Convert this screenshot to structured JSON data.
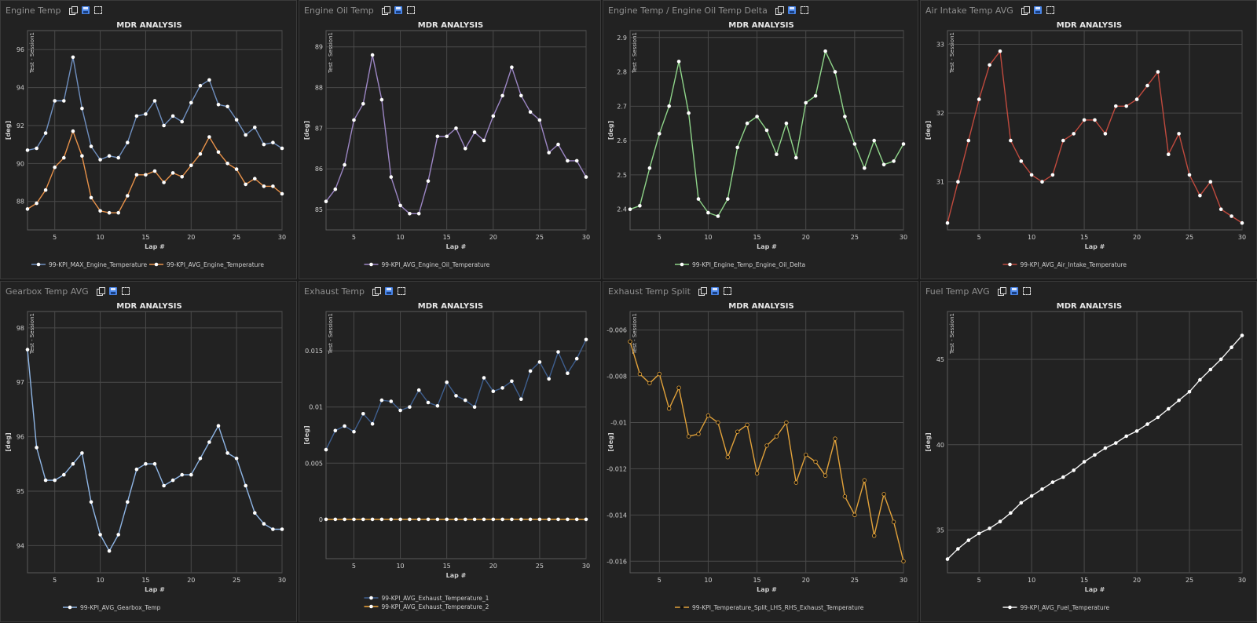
{
  "dashboard": {
    "panels": [
      {
        "title": "Engine Temp"
      },
      {
        "title": "Engine Oil Temp"
      },
      {
        "title": "Engine Temp / Engine Oil Temp Delta"
      },
      {
        "title": "Air Intake Temp AVG"
      },
      {
        "title": "Gearbox Temp AVG"
      },
      {
        "title": "Exhaust Temp"
      },
      {
        "title": "Exhaust Temp Split"
      },
      {
        "title": "Fuel Temp AVG"
      }
    ]
  },
  "icons": {
    "copy": "copy-icon",
    "save": "save-icon",
    "maximize": "maximize-icon"
  },
  "colors": {
    "panel_bg": "#222222",
    "grid": "#4a4a4a",
    "text": "#cfcfcf"
  },
  "chart_data": [
    {
      "type": "line",
      "title": "MDR ANALYSIS",
      "xlabel": "Lap #",
      "ylabel": "[deg]",
      "annotation": "Test - Session1",
      "xlim": [
        2,
        30
      ],
      "ylim": [
        86.5,
        97
      ],
      "xticks": [
        5,
        10,
        15,
        20,
        25,
        30
      ],
      "yticks": [
        88,
        90,
        92,
        94,
        96
      ],
      "ytick_labels": [
        "88",
        "90",
        "92",
        "94",
        "96"
      ],
      "x": [
        2,
        3,
        4,
        5,
        6,
        7,
        8,
        9,
        10,
        11,
        12,
        13,
        14,
        15,
        16,
        17,
        18,
        19,
        20,
        21,
        22,
        23,
        24,
        25,
        26,
        27,
        28,
        29,
        30
      ],
      "series": [
        {
          "name": "99-KPI_MAX_Engine_Temperature",
          "color": "#6f8fbf",
          "values": [
            90.7,
            90.8,
            91.6,
            93.3,
            93.3,
            95.6,
            92.9,
            90.9,
            90.2,
            90.4,
            90.3,
            91.1,
            92.5,
            92.6,
            93.3,
            92.0,
            92.5,
            92.2,
            93.2,
            94.1,
            94.4,
            93.1,
            93.0,
            92.3,
            91.5,
            91.9,
            91.0,
            91.1,
            90.8
          ]
        },
        {
          "name": "99-KPI_AVG_Engine_Temperature",
          "color": "#e8924a",
          "values": [
            87.6,
            87.9,
            88.6,
            89.8,
            90.3,
            91.7,
            90.4,
            88.2,
            87.5,
            87.4,
            87.4,
            88.3,
            89.4,
            89.4,
            89.6,
            89.0,
            89.5,
            89.3,
            89.9,
            90.5,
            91.4,
            90.6,
            90.0,
            89.7,
            88.9,
            89.2,
            88.8,
            88.8,
            88.4
          ]
        }
      ]
    },
    {
      "type": "line",
      "title": "MDR ANALYSIS",
      "xlabel": "Lap #",
      "ylabel": "[deg]",
      "annotation": "Test - Session1",
      "xlim": [
        2,
        30
      ],
      "ylim": [
        84.5,
        89.4
      ],
      "xticks": [
        5,
        10,
        15,
        20,
        25,
        30
      ],
      "yticks": [
        85,
        86,
        87,
        88,
        89
      ],
      "ytick_labels": [
        "85",
        "86",
        "87",
        "88",
        "89"
      ],
      "x": [
        2,
        3,
        4,
        5,
        6,
        7,
        8,
        9,
        10,
        11,
        12,
        13,
        14,
        15,
        16,
        17,
        18,
        19,
        20,
        21,
        22,
        23,
        24,
        25,
        26,
        27,
        28,
        29,
        30
      ],
      "series": [
        {
          "name": "99-KPI_AVG_Engine_Oil_Temperature",
          "color": "#9c86c4",
          "values": [
            85.2,
            85.5,
            86.1,
            87.2,
            87.6,
            88.8,
            87.7,
            85.8,
            85.1,
            84.9,
            84.9,
            85.7,
            86.8,
            86.8,
            87.0,
            86.5,
            86.9,
            86.7,
            87.3,
            87.8,
            88.5,
            87.8,
            87.4,
            87.2,
            86.4,
            86.6,
            86.2,
            86.2,
            85.8
          ]
        }
      ]
    },
    {
      "type": "line",
      "title": "MDR ANALYSIS",
      "xlabel": "Lap #",
      "ylabel": "[deg]",
      "annotation": "Test - Session1",
      "xlim": [
        2,
        30
      ],
      "ylim": [
        2.34,
        2.92
      ],
      "xticks": [
        5,
        10,
        15,
        20,
        25,
        30
      ],
      "yticks": [
        2.4,
        2.5,
        2.6,
        2.7,
        2.8,
        2.9
      ],
      "ytick_labels": [
        "2.4",
        "2.5",
        "2.6",
        "2.7",
        "2.8",
        "2.9"
      ],
      "x": [
        2,
        3,
        4,
        5,
        6,
        7,
        8,
        9,
        10,
        11,
        12,
        13,
        14,
        15,
        16,
        17,
        18,
        19,
        20,
        21,
        22,
        23,
        24,
        25,
        26,
        27,
        28,
        29,
        30
      ],
      "series": [
        {
          "name": "99-KPI_Engine_Temp_Engine_Oil_Delta",
          "color": "#8fd58a",
          "values": [
            2.4,
            2.41,
            2.52,
            2.62,
            2.7,
            2.83,
            2.68,
            2.43,
            2.39,
            2.38,
            2.43,
            2.58,
            2.65,
            2.67,
            2.63,
            2.56,
            2.65,
            2.55,
            2.71,
            2.73,
            2.86,
            2.8,
            2.67,
            2.59,
            2.52,
            2.6,
            2.53,
            2.54,
            2.59
          ]
        }
      ]
    },
    {
      "type": "line",
      "title": "MDR ANALYSIS",
      "xlabel": "Lap #",
      "ylabel": "[deg]",
      "annotation": "Test - Session1",
      "xlim": [
        2,
        30
      ],
      "ylim": [
        30.3,
        33.2
      ],
      "xticks": [
        5,
        10,
        15,
        20,
        25,
        30
      ],
      "yticks": [
        31,
        32,
        33
      ],
      "ytick_labels": [
        "31",
        "32",
        "33"
      ],
      "x": [
        2,
        3,
        4,
        5,
        6,
        7,
        8,
        9,
        10,
        11,
        12,
        13,
        14,
        15,
        16,
        17,
        18,
        19,
        20,
        21,
        22,
        23,
        24,
        25,
        26,
        27,
        28,
        29,
        30
      ],
      "series": [
        {
          "name": "99-KPI_AVG_Air_Intake_Temperature",
          "color": "#c04a3e",
          "values": [
            30.4,
            31.0,
            31.6,
            32.2,
            32.7,
            32.9,
            31.6,
            31.3,
            31.1,
            31.0,
            31.1,
            31.6,
            31.7,
            31.9,
            31.9,
            31.7,
            32.1,
            32.1,
            32.2,
            32.4,
            32.6,
            31.4,
            31.7,
            31.1,
            30.8,
            31.0,
            30.6,
            30.5,
            30.4
          ]
        }
      ]
    },
    {
      "type": "line",
      "title": "MDR ANALYSIS",
      "xlabel": "Lap #",
      "ylabel": "[deg]",
      "annotation": "Test - Session1",
      "xlim": [
        2,
        30
      ],
      "ylim": [
        93.5,
        98.3
      ],
      "xticks": [
        5,
        10,
        15,
        20,
        25,
        30
      ],
      "yticks": [
        94,
        95,
        96,
        97,
        98
      ],
      "ytick_labels": [
        "94",
        "95",
        "96",
        "97",
        "98"
      ],
      "x": [
        2,
        3,
        4,
        5,
        6,
        7,
        8,
        9,
        10,
        11,
        12,
        13,
        14,
        15,
        16,
        17,
        18,
        19,
        20,
        21,
        22,
        23,
        24,
        25,
        26,
        27,
        28,
        29,
        30
      ],
      "series": [
        {
          "name": "99-KPI_AVG_Gearbox_Temp",
          "color": "#8fb6e6",
          "values": [
            97.6,
            95.8,
            95.2,
            95.2,
            95.3,
            95.5,
            95.7,
            94.8,
            94.2,
            93.9,
            94.2,
            94.8,
            95.4,
            95.5,
            95.5,
            95.1,
            95.2,
            95.3,
            95.3,
            95.6,
            95.9,
            96.2,
            95.7,
            95.6,
            95.1,
            94.6,
            94.4,
            94.3,
            94.3
          ]
        }
      ]
    },
    {
      "type": "line",
      "title": "MDR ANALYSIS",
      "xlabel": "Lap #",
      "ylabel": "[deg]",
      "annotation": "Test - Session1",
      "xlim": [
        2,
        30
      ],
      "ylim": [
        -0.0035,
        0.0185
      ],
      "xticks": [
        5,
        10,
        15,
        20,
        25,
        30
      ],
      "yticks": [
        0,
        0.005,
        0.01,
        0.015
      ],
      "ytick_labels": [
        "0",
        "0.005",
        "0.01",
        "0.015"
      ],
      "x": [
        2,
        3,
        4,
        5,
        6,
        7,
        8,
        9,
        10,
        11,
        12,
        13,
        14,
        15,
        16,
        17,
        18,
        19,
        20,
        21,
        22,
        23,
        24,
        25,
        26,
        27,
        28,
        29,
        30
      ],
      "series": [
        {
          "name": "99-KPI_AVG_Exhaust_Temperature_1",
          "color": "#3f5f8f",
          "values": [
            0.0062,
            0.0079,
            0.0083,
            0.0078,
            0.0094,
            0.0085,
            0.0106,
            0.0105,
            0.0097,
            0.01,
            0.0115,
            0.0104,
            0.0101,
            0.0122,
            0.011,
            0.0106,
            0.01,
            0.0126,
            0.0114,
            0.0117,
            0.0123,
            0.0107,
            0.0132,
            0.014,
            0.0125,
            0.0149,
            0.013,
            0.0143,
            0.016
          ]
        },
        {
          "name": "99-KPI_AVG_Exhaust_Temperature_2",
          "color": "#f0a63a",
          "values": [
            0,
            0,
            0,
            0,
            0,
            0,
            0,
            0,
            0,
            0,
            0,
            0,
            0,
            0,
            0,
            0,
            0,
            0,
            0,
            0,
            0,
            0,
            0,
            0,
            0,
            0,
            0,
            0,
            0
          ]
        }
      ]
    },
    {
      "type": "line",
      "title": "MDR ANALYSIS",
      "xlabel": "Lap #",
      "ylabel": "[deg]",
      "annotation": "Test - Session1",
      "xlim": [
        2,
        30
      ],
      "ylim": [
        -0.0165,
        -0.0052
      ],
      "xticks": [
        5,
        10,
        15,
        20,
        25,
        30
      ],
      "yticks": [
        -0.016,
        -0.014,
        -0.012,
        -0.01,
        -0.008,
        -0.006
      ],
      "ytick_labels": [
        "-0.016",
        "-0.014",
        "-0.012",
        "-0.01",
        "-0.008",
        "-0.006"
      ],
      "x": [
        2,
        3,
        4,
        5,
        6,
        7,
        8,
        9,
        10,
        11,
        12,
        13,
        14,
        15,
        16,
        17,
        18,
        19,
        20,
        21,
        22,
        23,
        24,
        25,
        26,
        27,
        28,
        29,
        30
      ],
      "series": [
        {
          "name": "99-KPI_Temperature_Split_LHS_RHS_Exhaust_Temperature",
          "color": "#e2a23a",
          "marker": "#111111",
          "values": [
            -0.0065,
            -0.0079,
            -0.0083,
            -0.0079,
            -0.0094,
            -0.0085,
            -0.0106,
            -0.0105,
            -0.0097,
            -0.01,
            -0.0115,
            -0.0104,
            -0.0101,
            -0.0122,
            -0.011,
            -0.0106,
            -0.01,
            -0.0126,
            -0.0114,
            -0.0117,
            -0.0123,
            -0.0107,
            -0.0132,
            -0.014,
            -0.0125,
            -0.0149,
            -0.0131,
            -0.0143,
            -0.016
          ]
        }
      ]
    },
    {
      "type": "line",
      "title": "MDR ANALYSIS",
      "xlabel": "Lap #",
      "ylabel": "[deg]",
      "annotation": "Test - Session1",
      "xlim": [
        2,
        30
      ],
      "ylim": [
        32.5,
        47.8
      ],
      "xticks": [
        5,
        10,
        15,
        20,
        25,
        30
      ],
      "yticks": [
        35,
        40,
        45
      ],
      "ytick_labels": [
        "35",
        "40",
        "45"
      ],
      "x": [
        2,
        3,
        4,
        5,
        6,
        7,
        8,
        9,
        10,
        11,
        12,
        13,
        14,
        15,
        16,
        17,
        18,
        19,
        20,
        21,
        22,
        23,
        24,
        25,
        26,
        27,
        28,
        29,
        30
      ],
      "series": [
        {
          "name": "99-KPI_AVG_Fuel_Temperature",
          "color": "#f0f0f0",
          "values": [
            33.3,
            33.9,
            34.4,
            34.8,
            35.1,
            35.5,
            36.0,
            36.6,
            37.0,
            37.4,
            37.8,
            38.1,
            38.5,
            39.0,
            39.4,
            39.8,
            40.1,
            40.5,
            40.8,
            41.2,
            41.6,
            42.1,
            42.6,
            43.1,
            43.8,
            44.4,
            45.0,
            45.7,
            46.4
          ]
        }
      ]
    }
  ]
}
